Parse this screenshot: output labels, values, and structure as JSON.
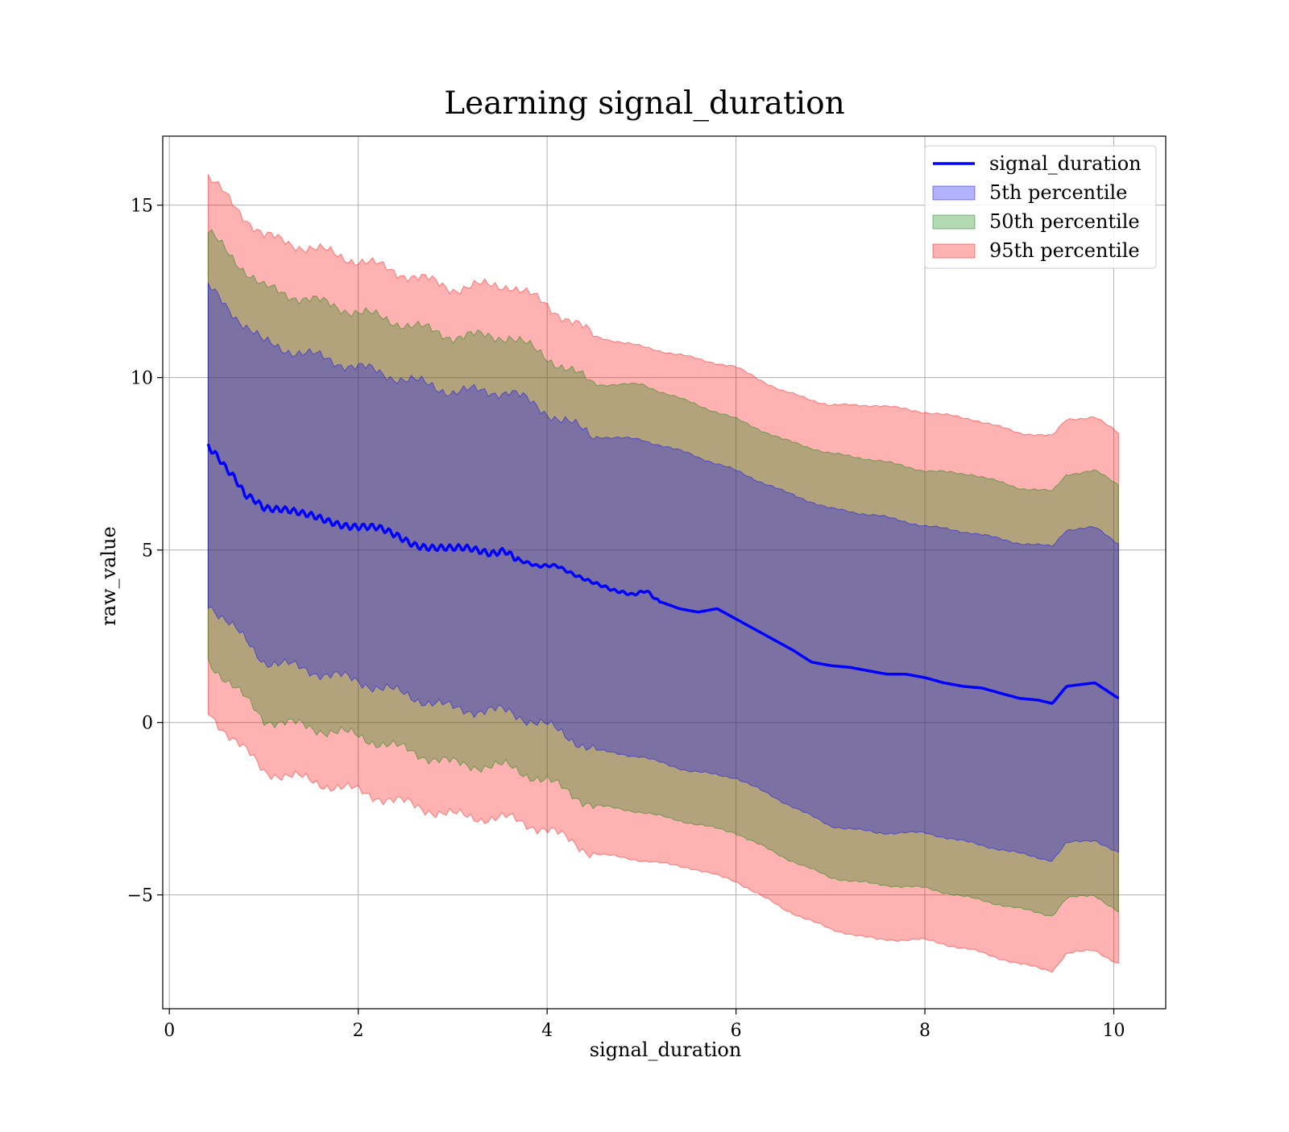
{
  "chart_data": {
    "type": "line",
    "title": "Learning signal_duration",
    "xlabel": "signal_duration",
    "ylabel": "raw_value",
    "xlim": [
      -0.07,
      10.55
    ],
    "ylim": [
      -8.3,
      17.0
    ],
    "xticks": [
      0,
      2,
      4,
      6,
      8,
      10
    ],
    "yticks": [
      -5,
      0,
      5,
      10,
      15
    ],
    "ytick_labels": [
      "−5",
      "0",
      "5",
      "10",
      "15"
    ],
    "grid": true,
    "legend_position": "upper right",
    "line": {
      "name": "signal_duration",
      "color": "#0000ff",
      "x": [
        0.41,
        0.5,
        0.6,
        0.7,
        0.8,
        0.9,
        1.0,
        1.2,
        1.4,
        1.6,
        1.8,
        2.0,
        2.2,
        2.4,
        2.6,
        2.8,
        3.0,
        3.2,
        3.4,
        3.55,
        3.7,
        3.9,
        4.1,
        4.3,
        4.5,
        4.7,
        4.9,
        5.05,
        5.2,
        5.4,
        5.6,
        5.8,
        6.0,
        6.2,
        6.4,
        6.6,
        6.8,
        7.0,
        7.2,
        7.4,
        7.6,
        7.8,
        8.0,
        8.2,
        8.4,
        8.6,
        8.8,
        9.0,
        9.2,
        9.35,
        9.5,
        9.65,
        9.8,
        10.05
      ],
      "y": [
        8.0,
        7.7,
        7.3,
        7.0,
        6.6,
        6.5,
        6.3,
        6.2,
        6.0,
        5.9,
        5.8,
        5.7,
        5.6,
        5.4,
        5.2,
        5.1,
        5.0,
        5.0,
        4.95,
        5.05,
        4.7,
        4.5,
        4.55,
        4.3,
        4.05,
        3.8,
        3.7,
        3.85,
        3.5,
        3.3,
        3.2,
        3.3,
        3.0,
        2.7,
        2.4,
        2.1,
        1.75,
        1.65,
        1.6,
        1.5,
        1.4,
        1.4,
        1.3,
        1.15,
        1.05,
        1.0,
        0.85,
        0.7,
        0.65,
        0.55,
        1.05,
        1.1,
        1.15,
        0.7
      ]
    },
    "bands": [
      {
        "name": "95th percentile",
        "color": "#ff0000",
        "opacity": 0.3,
        "x": [
          0.41,
          1.0,
          2.0,
          3.0,
          3.6,
          4.0,
          4.5,
          5.0,
          5.5,
          6.0,
          6.5,
          7.0,
          7.5,
          8.0,
          8.5,
          9.0,
          9.35,
          9.5,
          9.8,
          10.05
        ],
        "upper": [
          15.8,
          14.1,
          13.4,
          12.6,
          12.7,
          12.1,
          11.2,
          10.9,
          10.6,
          10.3,
          9.6,
          9.2,
          9.2,
          9.0,
          8.8,
          8.4,
          8.3,
          8.8,
          8.85,
          8.4
        ],
        "lower": [
          0.3,
          -1.4,
          -2.0,
          -2.7,
          -2.8,
          -3.1,
          -3.8,
          -4.0,
          -4.2,
          -4.6,
          -5.4,
          -6.0,
          -6.3,
          -6.3,
          -6.6,
          -7.0,
          -7.2,
          -6.7,
          -6.6,
          -7.0
        ]
      },
      {
        "name": "50th percentile",
        "color": "#008000",
        "opacity": 0.3,
        "x": [
          0.41,
          1.0,
          2.0,
          3.0,
          3.6,
          4.0,
          4.5,
          5.0,
          5.5,
          6.0,
          6.5,
          7.0,
          7.5,
          8.0,
          8.5,
          9.0,
          9.35,
          9.5,
          9.8,
          10.05
        ],
        "upper": [
          14.2,
          12.6,
          11.9,
          11.2,
          11.2,
          10.6,
          9.8,
          9.8,
          9.3,
          8.8,
          8.2,
          7.8,
          7.6,
          7.3,
          7.2,
          6.8,
          6.7,
          7.2,
          7.3,
          6.9
        ],
        "lower": [
          1.8,
          0.1,
          -0.4,
          -1.2,
          -1.3,
          -1.7,
          -2.4,
          -2.6,
          -2.9,
          -3.2,
          -3.9,
          -4.5,
          -4.7,
          -4.8,
          -5.1,
          -5.4,
          -5.6,
          -5.1,
          -5.0,
          -5.5
        ]
      },
      {
        "name": "5th percentile",
        "color": "#0000ff",
        "opacity": 0.3,
        "x": [
          0.41,
          1.0,
          2.0,
          3.0,
          3.6,
          4.0,
          4.5,
          5.0,
          5.5,
          6.0,
          6.5,
          7.0,
          7.5,
          8.0,
          8.5,
          9.0,
          9.35,
          9.5,
          9.8,
          10.05
        ],
        "upper": [
          12.6,
          11.0,
          10.3,
          9.6,
          9.6,
          9.0,
          8.3,
          8.2,
          7.8,
          7.3,
          6.7,
          6.2,
          6.0,
          5.7,
          5.5,
          5.2,
          5.1,
          5.6,
          5.65,
          5.2
        ],
        "lower": [
          3.5,
          1.8,
          1.2,
          0.4,
          0.3,
          -0.1,
          -0.8,
          -1.0,
          -1.4,
          -1.6,
          -2.3,
          -3.0,
          -3.2,
          -3.2,
          -3.5,
          -3.8,
          -4.0,
          -3.5,
          -3.4,
          -3.8
        ]
      }
    ],
    "legend": [
      {
        "label": "signal_duration",
        "kind": "line",
        "color": "#0000ff"
      },
      {
        "label": "5th percentile",
        "kind": "patch",
        "color": "#0000ff"
      },
      {
        "label": "50th percentile",
        "kind": "patch",
        "color": "#008000"
      },
      {
        "label": "95th percentile",
        "kind": "patch",
        "color": "#ff0000"
      }
    ]
  }
}
